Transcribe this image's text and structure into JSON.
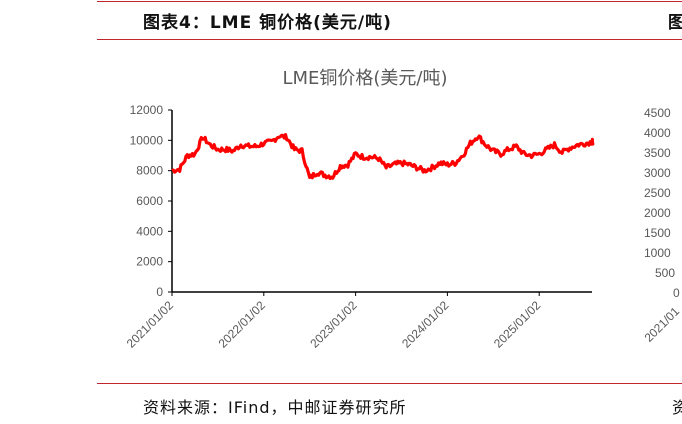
{
  "header": {
    "title": "图表4：LME 铜价格(美元/吨)",
    "right_partial": "图"
  },
  "footer": {
    "source": "资料来源：IFind，中邮证券研究所",
    "right_partial": "资"
  },
  "colors": {
    "line": "#ff0000",
    "rule": "#c0262d",
    "axis": "#000000",
    "text": "#595959"
  },
  "chart_data": {
    "type": "line",
    "title": "LME铜价格(美元/吨)",
    "xlabel": "",
    "ylabel": "",
    "ylim": [
      0,
      12000
    ],
    "yticks": [
      "0",
      "2000",
      "4000",
      "6000",
      "8000",
      "10000",
      "12000"
    ],
    "xticks": [
      "2021/01/02",
      "2022/01/02",
      "2023/01/02",
      "2024/01/02",
      "2025/01/02"
    ],
    "xlim": [
      "2021-01",
      "2025-08"
    ],
    "grid": false,
    "series": [
      {
        "x": [
          "2021-01",
          "2021-02",
          "2021-03",
          "2021-04",
          "2021-05",
          "2021-06",
          "2021-07",
          "2021-08",
          "2021-09",
          "2021-10",
          "2021-11",
          "2021-12",
          "2022-01",
          "2022-02",
          "2022-03",
          "2022-04",
          "2022-05",
          "2022-06",
          "2022-07",
          "2022-08",
          "2022-09",
          "2022-10",
          "2022-11",
          "2022-12",
          "2023-01",
          "2023-02",
          "2023-03",
          "2023-04",
          "2023-05",
          "2023-06",
          "2023-07",
          "2023-08",
          "2023-09",
          "2023-10",
          "2023-11",
          "2023-12",
          "2024-01",
          "2024-02",
          "2024-03",
          "2024-04",
          "2024-05",
          "2024-06",
          "2024-07",
          "2024-08",
          "2024-09",
          "2024-10",
          "2024-11",
          "2024-12",
          "2025-01",
          "2025-02",
          "2025-03",
          "2025-04",
          "2025-05",
          "2025-06",
          "2025-07",
          "2025-08"
        ],
        "values": [
          8000,
          8100,
          9000,
          9100,
          10200,
          9700,
          9400,
          9400,
          9300,
          9700,
          9600,
          9600,
          9800,
          9900,
          10300,
          10200,
          9400,
          9300,
          7500,
          7900,
          7700,
          7600,
          8300,
          8400,
          9100,
          8900,
          8900,
          8800,
          8200,
          8400,
          8500,
          8400,
          8200,
          8000,
          8200,
          8500,
          8400,
          8500,
          9000,
          9800,
          10300,
          9700,
          9300,
          9100,
          9400,
          9600,
          9100,
          9000,
          9100,
          9400,
          9700,
          9200,
          9500,
          9700,
          9800,
          9900
        ]
      }
    ]
  },
  "right_panel": {
    "yticks": [
      "0",
      "500",
      "1000",
      "1500",
      "2000",
      "2500",
      "3000",
      "3500",
      "4000",
      "4500"
    ],
    "xtick": "2021/01"
  }
}
